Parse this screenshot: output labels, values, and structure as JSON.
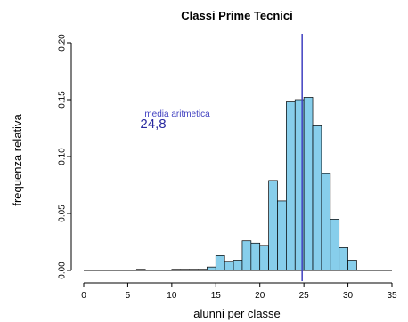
{
  "chart_data": {
    "type": "bar",
    "title": "Classi Prime Tecnici",
    "xlabel": "alunni per classe",
    "ylabel": "frequenza relativa",
    "xlim": [
      0,
      35
    ],
    "ylim": [
      0,
      0.2
    ],
    "x_ticks": [
      0,
      5,
      10,
      15,
      20,
      25,
      30,
      35
    ],
    "x_tick_labels": [
      "0",
      "5",
      "10",
      "15",
      "20",
      "25",
      "30",
      "35"
    ],
    "y_ticks": [
      0,
      0.05,
      0.1,
      0.15,
      0.2
    ],
    "y_tick_labels": [
      "0.00",
      "0.05",
      "0.10",
      "0.15",
      "0.20"
    ],
    "bin_width": 1,
    "bins": [
      {
        "start": 6,
        "value": 0.001
      },
      {
        "start": 10,
        "value": 0.001
      },
      {
        "start": 11,
        "value": 0.001
      },
      {
        "start": 12,
        "value": 0.001
      },
      {
        "start": 13,
        "value": 0.001
      },
      {
        "start": 14,
        "value": 0.003
      },
      {
        "start": 15,
        "value": 0.013
      },
      {
        "start": 16,
        "value": 0.008
      },
      {
        "start": 17,
        "value": 0.009
      },
      {
        "start": 18,
        "value": 0.026
      },
      {
        "start": 19,
        "value": 0.024
      },
      {
        "start": 20,
        "value": 0.022
      },
      {
        "start": 21,
        "value": 0.079
      },
      {
        "start": 22,
        "value": 0.061
      },
      {
        "start": 23,
        "value": 0.148
      },
      {
        "start": 24,
        "value": 0.15
      },
      {
        "start": 25,
        "value": 0.152
      },
      {
        "start": 26,
        "value": 0.127
      },
      {
        "start": 27,
        "value": 0.085
      },
      {
        "start": 28,
        "value": 0.045
      },
      {
        "start": 29,
        "value": 0.02
      },
      {
        "start": 30,
        "value": 0.009
      }
    ],
    "mean": 24.8,
    "annotation": {
      "label": "media aritmetica",
      "value": "24,8"
    },
    "colors": {
      "bar_fill": "#87ceeb",
      "bar_stroke": "#000000",
      "mean_line": "#4040c0",
      "annotation": "#2a2aa0"
    }
  }
}
